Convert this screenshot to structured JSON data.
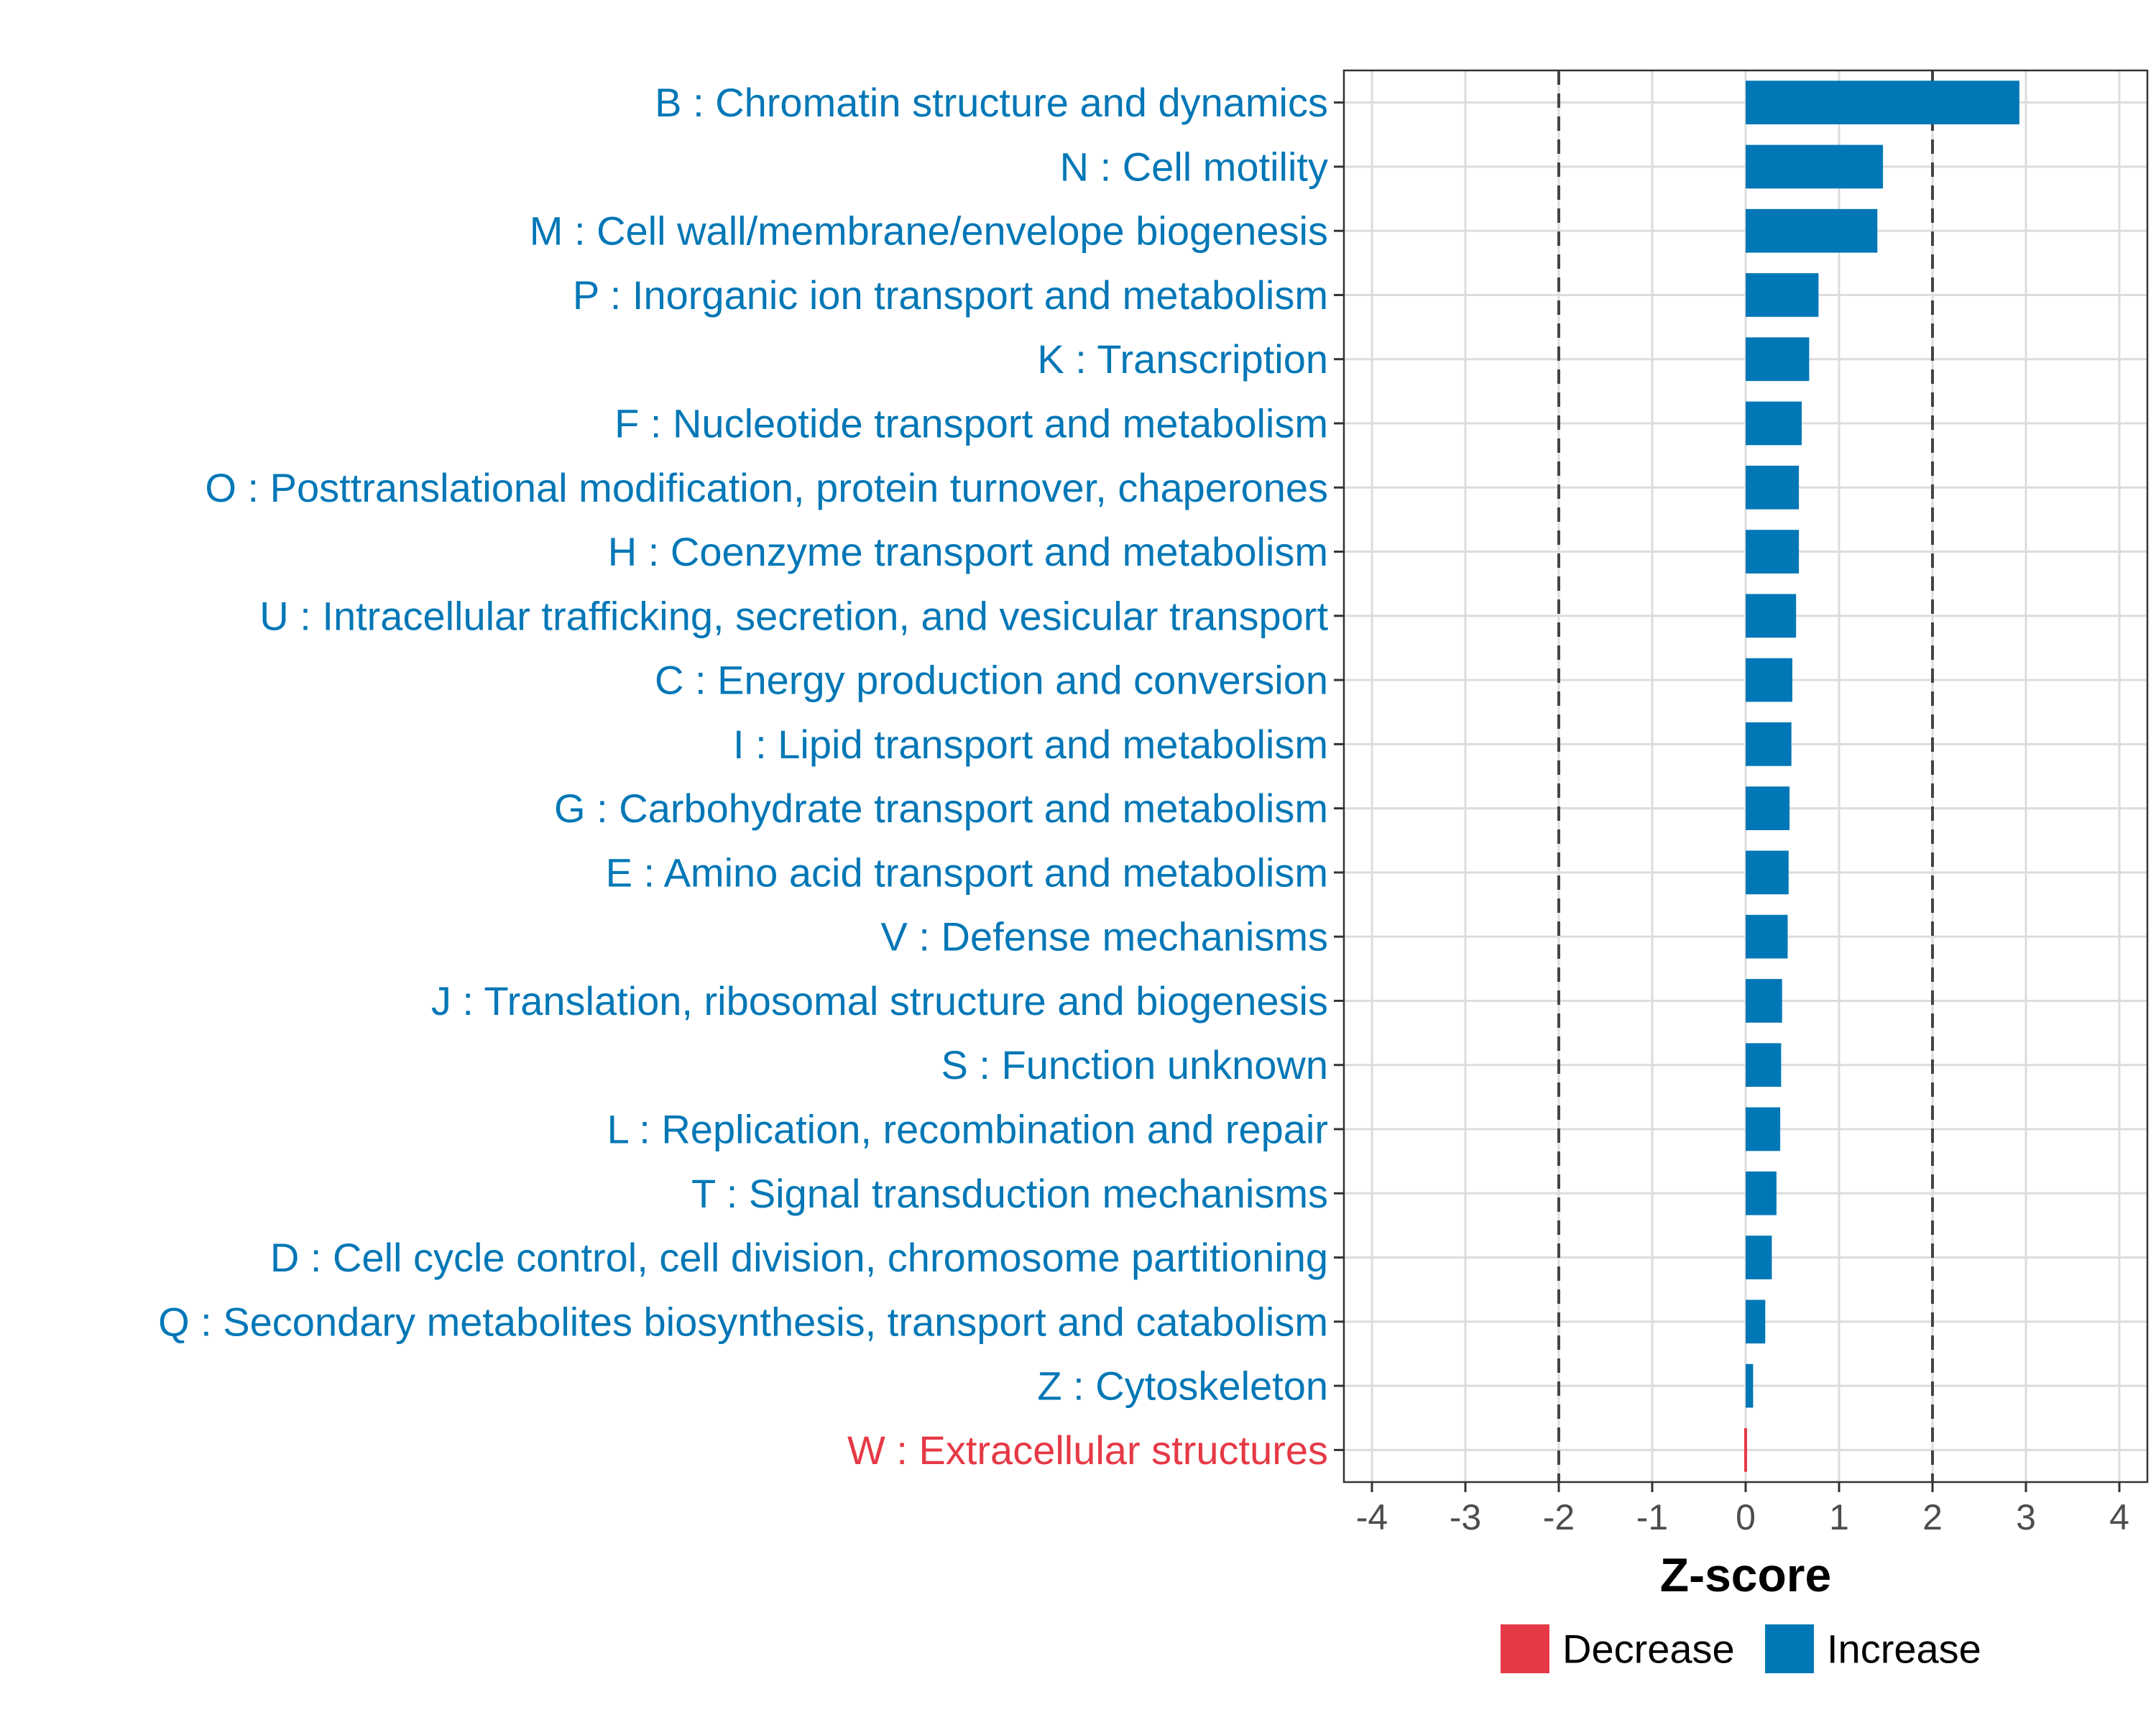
{
  "chart_data": {
    "type": "bar",
    "orientation": "horizontal",
    "xlabel": "Z-score",
    "ylabel": "",
    "xlim": [
      -4.3,
      4.3
    ],
    "xticks": [
      -4,
      -3,
      -2,
      -1,
      0,
      1,
      2,
      3,
      4
    ],
    "xtick_labels": [
      "-4",
      "-3",
      "-2",
      "-1",
      "0",
      "1",
      "2",
      "3",
      "4"
    ],
    "reference_lines": [
      -2,
      2
    ],
    "grid": true,
    "legend": {
      "position": "bottom",
      "items": [
        {
          "name": "Decrease",
          "color": "#E63946"
        },
        {
          "name": "Increase",
          "color": "#0077B6"
        }
      ]
    },
    "categories": [
      "B : Chromatin structure and dynamics",
      "N : Cell motility",
      "M : Cell wall/membrane/envelope biogenesis",
      "P : Inorganic ion transport and metabolism",
      "K : Transcription",
      "F : Nucleotide transport and metabolism",
      "O : Posttranslational modification, protein turnover, chaperones",
      "H : Coenzyme transport and metabolism",
      "U : Intracellular trafficking, secretion, and vesicular transport",
      "C : Energy production and conversion",
      "I : Lipid transport and metabolism",
      "G : Carbohydrate transport and metabolism",
      "E : Amino acid transport and metabolism",
      "V : Defense mechanisms",
      "J : Translation, ribosomal structure and biogenesis",
      "S : Function unknown",
      "L : Replication, recombination and repair",
      "T : Signal transduction mechanisms",
      "D : Cell cycle control, cell division, chromosome partitioning",
      "Q : Secondary metabolites biosynthesis, transport and catabolism",
      "Z : Cytoskeleton",
      "W : Extracellular structures"
    ],
    "values": [
      2.93,
      1.47,
      1.41,
      0.78,
      0.68,
      0.6,
      0.57,
      0.57,
      0.54,
      0.5,
      0.49,
      0.47,
      0.46,
      0.45,
      0.39,
      0.38,
      0.37,
      0.33,
      0.28,
      0.21,
      0.08,
      -0.01
    ],
    "groups": [
      "Increase",
      "Increase",
      "Increase",
      "Increase",
      "Increase",
      "Increase",
      "Increase",
      "Increase",
      "Increase",
      "Increase",
      "Increase",
      "Increase",
      "Increase",
      "Increase",
      "Increase",
      "Increase",
      "Increase",
      "Increase",
      "Increase",
      "Increase",
      "Increase",
      "Decrease"
    ]
  }
}
